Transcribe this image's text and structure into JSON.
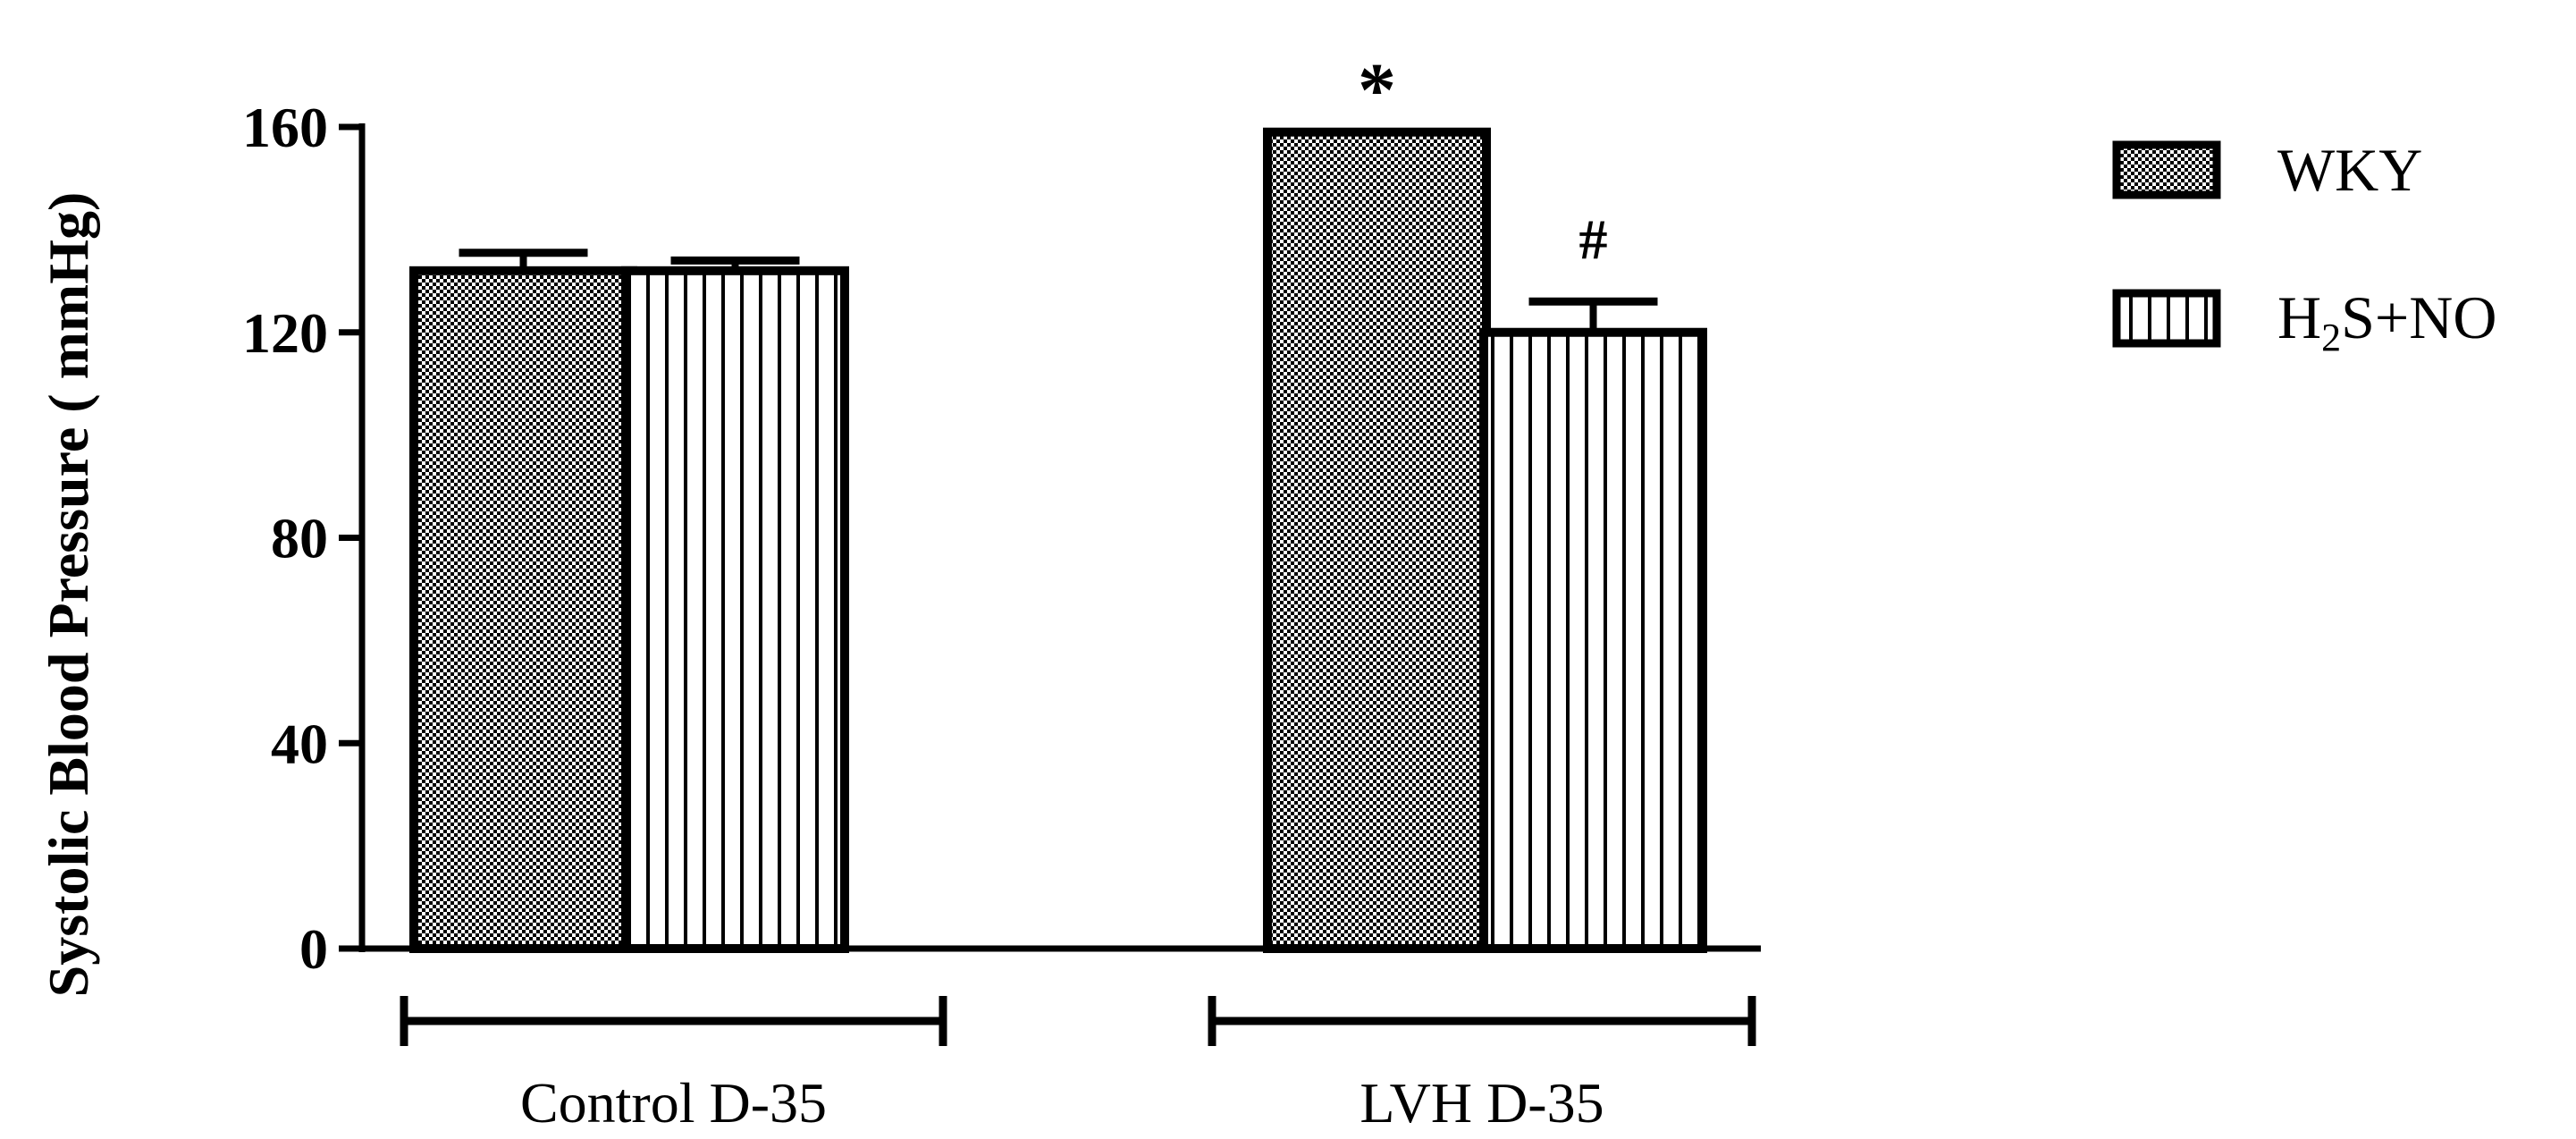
{
  "chart_data": {
    "type": "bar",
    "ylabel": "Systolic Blood Pressure ( mmHg)",
    "xlabel": "",
    "ylim": [
      0,
      160
    ],
    "yticks": [
      0,
      40,
      80,
      120,
      160
    ],
    "grid": false,
    "legend_position": "right",
    "groups": [
      {
        "label": "Control D-35",
        "bars": [
          0,
          1
        ]
      },
      {
        "label": "LVH D-35",
        "bars": [
          2,
          3
        ]
      }
    ],
    "series": [
      {
        "name": "WKY",
        "pattern": "checker"
      },
      {
        "name": "H2S+NO",
        "pattern": "vertical-lines"
      }
    ],
    "bars": [
      {
        "group": "Control D-35",
        "series": "WKY",
        "value": 132,
        "error": 3.5,
        "annotation": ""
      },
      {
        "group": "Control D-35",
        "series": "H2S+NO",
        "value": 132,
        "error": 2,
        "annotation": ""
      },
      {
        "group": "LVH D-35",
        "series": "WKY",
        "value": 159,
        "error": 0,
        "annotation": "*"
      },
      {
        "group": "LVH D-35",
        "series": "H2S+NO",
        "value": 120,
        "error": 6,
        "annotation": "#"
      }
    ],
    "legend": [
      {
        "text_main": "H",
        "text_sub": "",
        "text_rest": "",
        "plain": "WKY"
      },
      {
        "text_main": "H",
        "text_sub": "2",
        "text_rest": "S+NO",
        "plain": ""
      }
    ]
  }
}
